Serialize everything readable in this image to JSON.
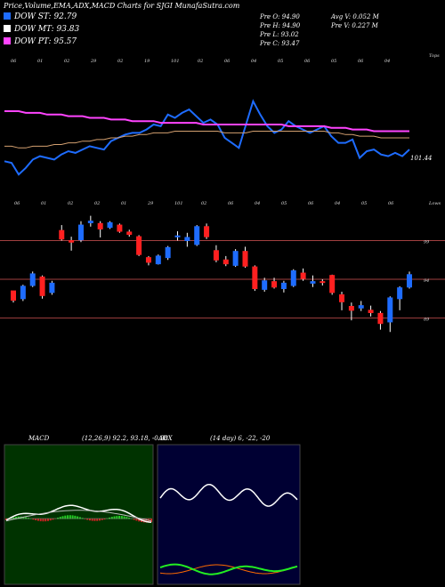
{
  "header": {
    "title": "Price,Volume,EMA,ADX,MACD Charts for SJGI MunafaSutra.com",
    "legend": [
      {
        "label": "DOW ST: 92.79",
        "color": "#1e6cff"
      },
      {
        "label": "DOW MT: 93.83",
        "color": "#ffffff"
      },
      {
        "label": "DOW PT: 95.57",
        "color": "#ff44ff"
      }
    ],
    "stats_left": [
      "Pre O: 94.90",
      "Pre H: 94.90",
      "Pre L: 93.02",
      "Pre C: 93.47"
    ],
    "stats_right": [
      "Avg V: 0.052 M",
      "Pre V: 0.227 M"
    ]
  },
  "colors": {
    "up": "#1e6cff",
    "down": "#ff2020",
    "price_line": "#ffffff",
    "ema_fast": "#1e6cff",
    "ema_long": "#ff44ff",
    "level_line": "#a04040",
    "macd_bg": "#003300",
    "adx_bg": "#000033"
  },
  "chart_data": [
    {
      "type": "line",
      "title": "",
      "right_label": "Tops",
      "last_value_label": "101.44",
      "top_date_labels": [
        "06",
        "01",
        "02",
        "29",
        "02",
        "19",
        "101",
        "02",
        "06",
        "04",
        "05",
        "06",
        "05",
        "06",
        "04"
      ],
      "series": [
        {
          "values": [
            101.0,
            100.9,
            100.2,
            100.6,
            101.1,
            101.3,
            101.2,
            101.1,
            101.4,
            101.6,
            101.5,
            101.7,
            101.9,
            101.8,
            101.7,
            102.2,
            102.4,
            102.6,
            102.7,
            102.7,
            102.9,
            103.2,
            103.1,
            103.8,
            103.6,
            103.9,
            104.1,
            103.7,
            103.3,
            103.5,
            103.2,
            102.4,
            102.1,
            101.8,
            103.2,
            104.6,
            103.8,
            103.1,
            102.7,
            102.9,
            103.4,
            103.1,
            102.9,
            102.7,
            102.9,
            103.1,
            102.5,
            102.1,
            102.1,
            102.3,
            101.2,
            101.6,
            101.7,
            101.4,
            101.3,
            101.5,
            101.3,
            101.7
          ]
        },
        {
          "values": [
            101.9,
            101.9,
            101.8,
            101.8,
            101.9,
            101.9,
            101.9,
            102.0,
            102.0,
            102.1,
            102.1,
            102.2,
            102.2,
            102.3,
            102.3,
            102.4,
            102.4,
            102.5,
            102.5,
            102.6,
            102.6,
            102.7,
            102.7,
            102.7,
            102.8,
            102.8,
            102.8,
            102.8,
            102.8,
            102.8,
            102.8,
            102.7,
            102.7,
            102.7,
            102.7,
            102.8,
            102.8,
            102.8,
            102.8,
            102.8,
            102.8,
            102.8,
            102.8,
            102.8,
            102.8,
            102.8,
            102.7,
            102.7,
            102.6,
            102.6,
            102.5,
            102.5,
            102.5,
            102.4,
            102.4,
            102.4,
            102.4,
            102.4
          ]
        },
        {
          "values": [
            104.0,
            104.0,
            104.0,
            103.9,
            103.9,
            103.9,
            103.8,
            103.8,
            103.8,
            103.7,
            103.7,
            103.7,
            103.6,
            103.6,
            103.6,
            103.5,
            103.5,
            103.5,
            103.4,
            103.4,
            103.4,
            103.4,
            103.3,
            103.3,
            103.3,
            103.3,
            103.3,
            103.3,
            103.2,
            103.2,
            103.2,
            103.2,
            103.2,
            103.2,
            103.2,
            103.2,
            103.2,
            103.2,
            103.2,
            103.2,
            103.1,
            103.1,
            103.1,
            103.1,
            103.1,
            103.1,
            103.0,
            103.0,
            103.0,
            102.9,
            102.9,
            102.9,
            102.8,
            102.8,
            102.8,
            102.8,
            102.8,
            102.8
          ]
        }
      ]
    },
    {
      "type": "candlestick",
      "right_label": "Lows",
      "y_ticks": [
        99,
        94,
        89
      ],
      "level_lines": [
        99,
        94,
        89
      ],
      "bottom_date_labels": [
        "06",
        "01",
        "02",
        "02",
        "01",
        "29",
        "101",
        "02",
        "06",
        "04",
        "05",
        "06",
        "04",
        "05",
        "06"
      ],
      "ohlc": [
        [
          92.5,
          92.5,
          91.0,
          91.3
        ],
        [
          91.5,
          93.3,
          91.2,
          93.1
        ],
        [
          93.2,
          95.0,
          93.0,
          94.7
        ],
        [
          94.3,
          94.5,
          91.5,
          91.9
        ],
        [
          92.3,
          93.8,
          92.0,
          93.5
        ],
        [
          100.3,
          101.0,
          99.0,
          99.2
        ],
        [
          99.0,
          99.5,
          97.7,
          98.8
        ],
        [
          99.1,
          101.5,
          98.8,
          101.0
        ],
        [
          101.3,
          102.2,
          100.8,
          101.5
        ],
        [
          101.2,
          101.5,
          99.4,
          100.5
        ],
        [
          100.7,
          101.5,
          100.5,
          101.3
        ],
        [
          101.0,
          101.2,
          100.0,
          100.2
        ],
        [
          100.1,
          100.4,
          99.5,
          99.8
        ],
        [
          99.5,
          99.7,
          97.0,
          97.2
        ],
        [
          96.8,
          97.0,
          95.8,
          96.2
        ],
        [
          96.0,
          97.2,
          95.9,
          97.0
        ],
        [
          96.8,
          98.3,
          96.5,
          98.1
        ],
        [
          99.5,
          100.2,
          99.0,
          99.6
        ],
        [
          99.0,
          100.0,
          98.2,
          99.4
        ],
        [
          98.5,
          101.0,
          98.3,
          100.8
        ],
        [
          100.8,
          101.2,
          99.2,
          99.5
        ],
        [
          97.7,
          98.4,
          96.2,
          96.5
        ],
        [
          96.5,
          97.0,
          95.7,
          96.0
        ],
        [
          95.8,
          97.9,
          95.6,
          97.6
        ],
        [
          97.6,
          98.2,
          95.5,
          95.7
        ],
        [
          95.6,
          95.8,
          92.5,
          92.8
        ],
        [
          92.7,
          94.2,
          92.4,
          93.8
        ],
        [
          93.7,
          94.2,
          92.8,
          93.0
        ],
        [
          92.8,
          93.8,
          92.3,
          93.5
        ],
        [
          93.2,
          95.3,
          93.0,
          95.1
        ],
        [
          94.8,
          95.4,
          93.8,
          94.1
        ],
        [
          93.5,
          94.5,
          93.0,
          93.7
        ],
        [
          93.7,
          94.0,
          93.2,
          93.6
        ],
        [
          94.5,
          94.6,
          92.0,
          92.3
        ],
        [
          92.0,
          92.4,
          90.0,
          91.1
        ],
        [
          90.5,
          91.0,
          88.7,
          90.0
        ],
        [
          90.3,
          91.2,
          89.9,
          90.6
        ],
        [
          90.0,
          90.6,
          89.2,
          89.7
        ],
        [
          89.6,
          89.9,
          87.5,
          88.3
        ],
        [
          88.5,
          91.8,
          87.2,
          91.6
        ],
        [
          91.5,
          93.1,
          90.0,
          92.9
        ],
        [
          93.0,
          95.0,
          92.8,
          94.6
        ]
      ]
    },
    {
      "type": "area",
      "title": "MACD",
      "params_label": "(12,26,9) 92.2, 93.18, -0.98"
    },
    {
      "type": "line",
      "title": "ADX",
      "params_label": "(14 day) 6, -22, -20"
    }
  ]
}
